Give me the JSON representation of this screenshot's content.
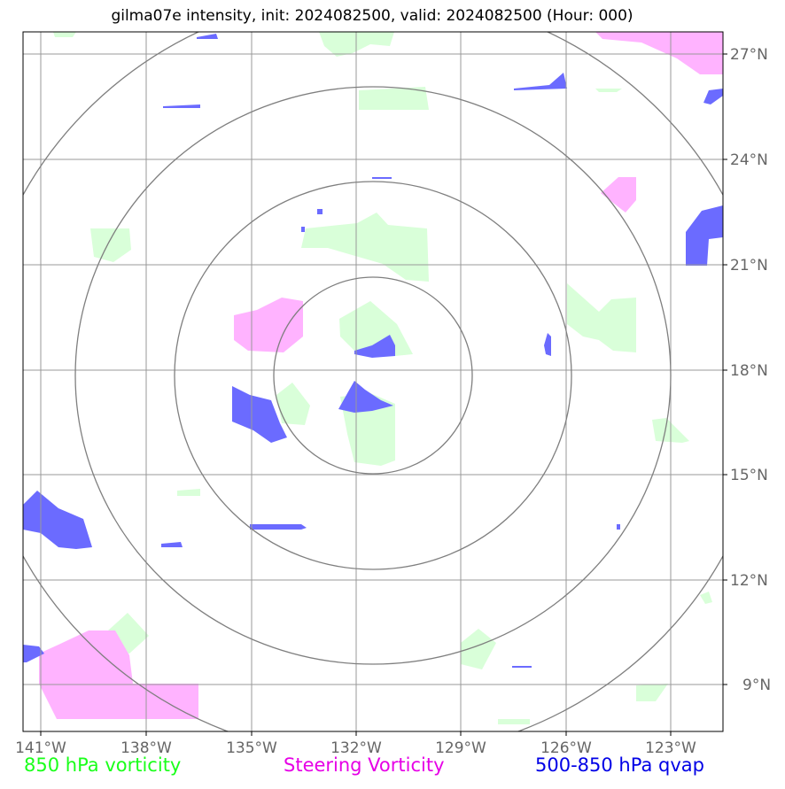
{
  "title": "gilma07e intensity, init: 2024082500, valid: 2024082500 (Hour: 000)",
  "lon_ticks": [
    "141°W",
    "138°W",
    "135°W",
    "132°W",
    "129°W",
    "126°W",
    "123°W"
  ],
  "lat_ticks": [
    "27°N",
    "24°N",
    "21°N",
    "18°N",
    "15°N",
    "12°N",
    "9°N"
  ],
  "legend": [
    {
      "label": "850 hPa vorticity",
      "color": "#1aff1a"
    },
    {
      "label": "Steering Vorticity",
      "color": "#e600e6"
    },
    {
      "label": "500-850 hPa qvap",
      "color": "#0000e6"
    }
  ],
  "colors": {
    "vorticity_850": "#d9ffd9",
    "steering_vorticity": "#ffb3ff",
    "qvap": "#6b6bff",
    "gridline": "#999999",
    "range_ring": "#7f7f7f"
  }
}
